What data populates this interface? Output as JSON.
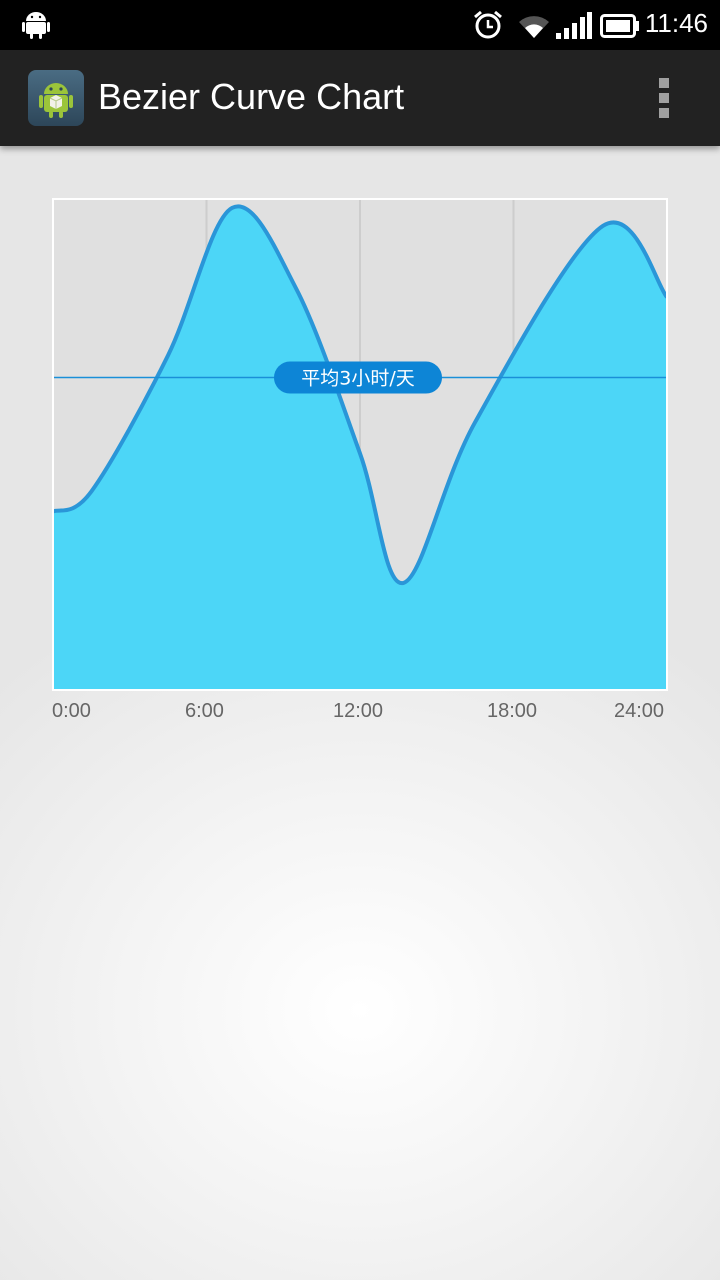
{
  "status_bar": {
    "time": "11:46",
    "icons": [
      "android-icon",
      "alarm-icon",
      "wifi-icon",
      "signal-icon",
      "battery-icon"
    ]
  },
  "action_bar": {
    "title": "Bezier Curve Chart",
    "app_icon": "android-app-icon",
    "menu_icon": "overflow-menu-icon"
  },
  "colors": {
    "fill": "#4cd6f7",
    "stroke": "#2a96d8",
    "badge": "#0d85d6",
    "plot_background": "#e0e0e0"
  },
  "chart_data": {
    "type": "area",
    "x_tick_labels": [
      "0:00",
      "6:00",
      "12:00",
      "18:00",
      "24:00"
    ],
    "x": [
      0,
      1.5,
      4.5,
      7,
      9.5,
      12,
      13.7,
      16.5,
      21.5,
      24
    ],
    "values": [
      4.0,
      4.45,
      7.5,
      10.8,
      9.0,
      5.3,
      2.4,
      6.0,
      10.4,
      8.8
    ],
    "annotation": {
      "label": "平均3小时/天",
      "y": 7.0
    },
    "xlim": [
      0,
      24
    ],
    "ylim": [
      0,
      11
    ],
    "grid": "vertical"
  }
}
